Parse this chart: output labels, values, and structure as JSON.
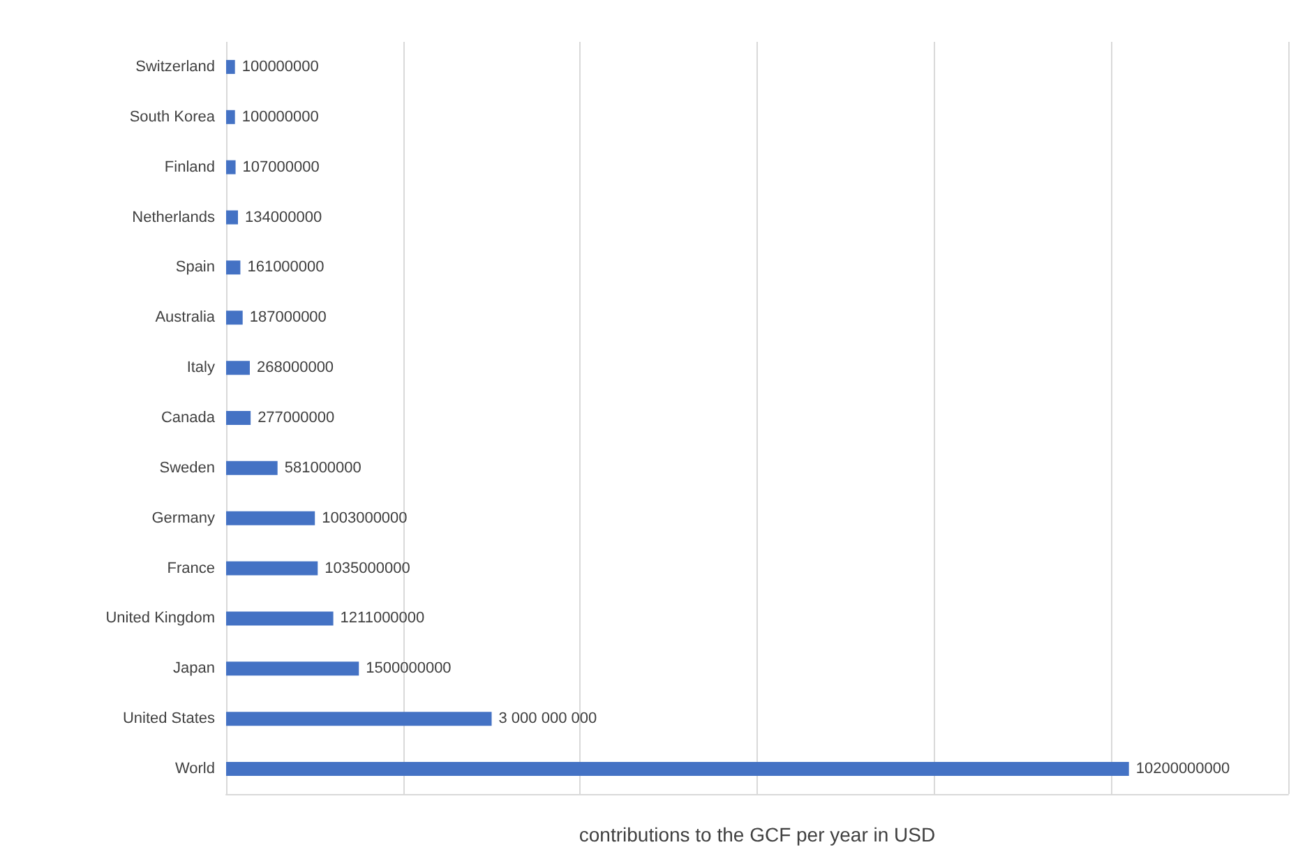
{
  "chart_data": {
    "type": "bar",
    "orientation": "horizontal",
    "xlabel": "contributions to the GCF per year in USD",
    "categories": [
      "Switzerland",
      "South Korea",
      "Finland",
      "Netherlands",
      "Spain",
      "Australia",
      "Italy",
      "Canada",
      "Sweden",
      "Germany",
      "France",
      "United Kingdom",
      "Japan",
      "United States",
      "World"
    ],
    "values": [
      100000000,
      100000000,
      107000000,
      134000000,
      161000000,
      187000000,
      268000000,
      277000000,
      581000000,
      1003000000,
      1035000000,
      1211000000,
      1500000000,
      3000000000,
      10200000000
    ],
    "value_labels": [
      "100000000",
      "100000000",
      "107000000",
      "134000000",
      "161000000",
      "187000000",
      "268000000",
      "277000000",
      "581000000",
      "1003000000",
      "1035000000",
      "1211000000",
      "1500000000",
      "3 000 000 000",
      "10200000000"
    ],
    "color": "#4472c4",
    "xlim": [
      0,
      12000000000
    ],
    "xticks": [
      {
        "value": 0,
        "label": null
      },
      {
        "value": 2000000000,
        "label": null
      },
      {
        "value": 4000000000,
        "label": null
      },
      {
        "value": 6000000000,
        "label": null
      },
      {
        "value": 8000000000,
        "label": null
      },
      {
        "value": 10000000000,
        "label": null
      },
      {
        "value": 12000000000,
        "label": null
      }
    ],
    "grid": "x",
    "tick_labels": "y"
  }
}
